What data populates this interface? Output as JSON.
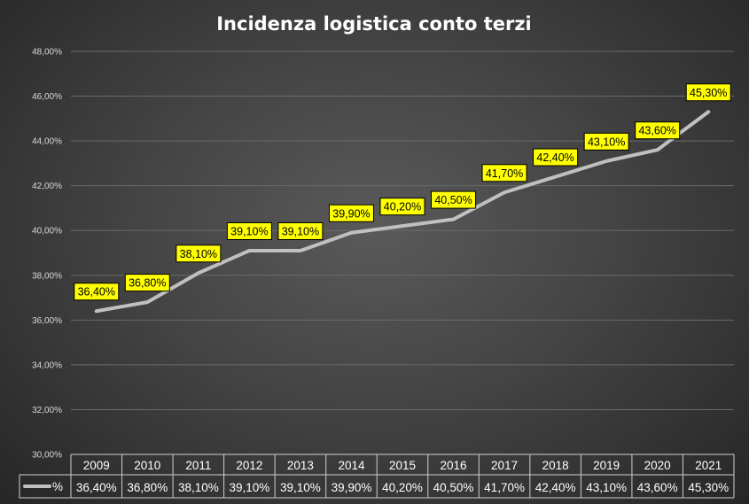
{
  "chart_data": {
    "type": "line",
    "title": "Incidenza logistica conto terzi",
    "categories": [
      "2009",
      "2010",
      "2011",
      "2012",
      "2013",
      "2014",
      "2015",
      "2016",
      "2017",
      "2018",
      "2019",
      "2020",
      "2021"
    ],
    "series": [
      {
        "name": "%",
        "color": "#c0c0c0",
        "values": [
          36.4,
          36.8,
          38.1,
          39.1,
          39.1,
          39.9,
          40.2,
          40.5,
          41.7,
          42.4,
          43.1,
          43.6,
          45.3
        ],
        "labels": [
          "36,40%",
          "36,80%",
          "38,10%",
          "39,10%",
          "39,10%",
          "39,90%",
          "40,20%",
          "40,50%",
          "41,70%",
          "42,40%",
          "43,10%",
          "43,60%",
          "45,30%"
        ]
      }
    ],
    "ylim": [
      30,
      48
    ],
    "yticks": [
      30,
      32,
      34,
      36,
      38,
      40,
      42,
      44,
      46,
      48
    ],
    "ytick_labels": [
      "30,00%",
      "32,00%",
      "34,00%",
      "36,00%",
      "38,00%",
      "40,00%",
      "42,00%",
      "44,00%",
      "46,00%",
      "48,00%"
    ],
    "grid": true,
    "data_table": true,
    "data_label_color": "#ffff00"
  }
}
